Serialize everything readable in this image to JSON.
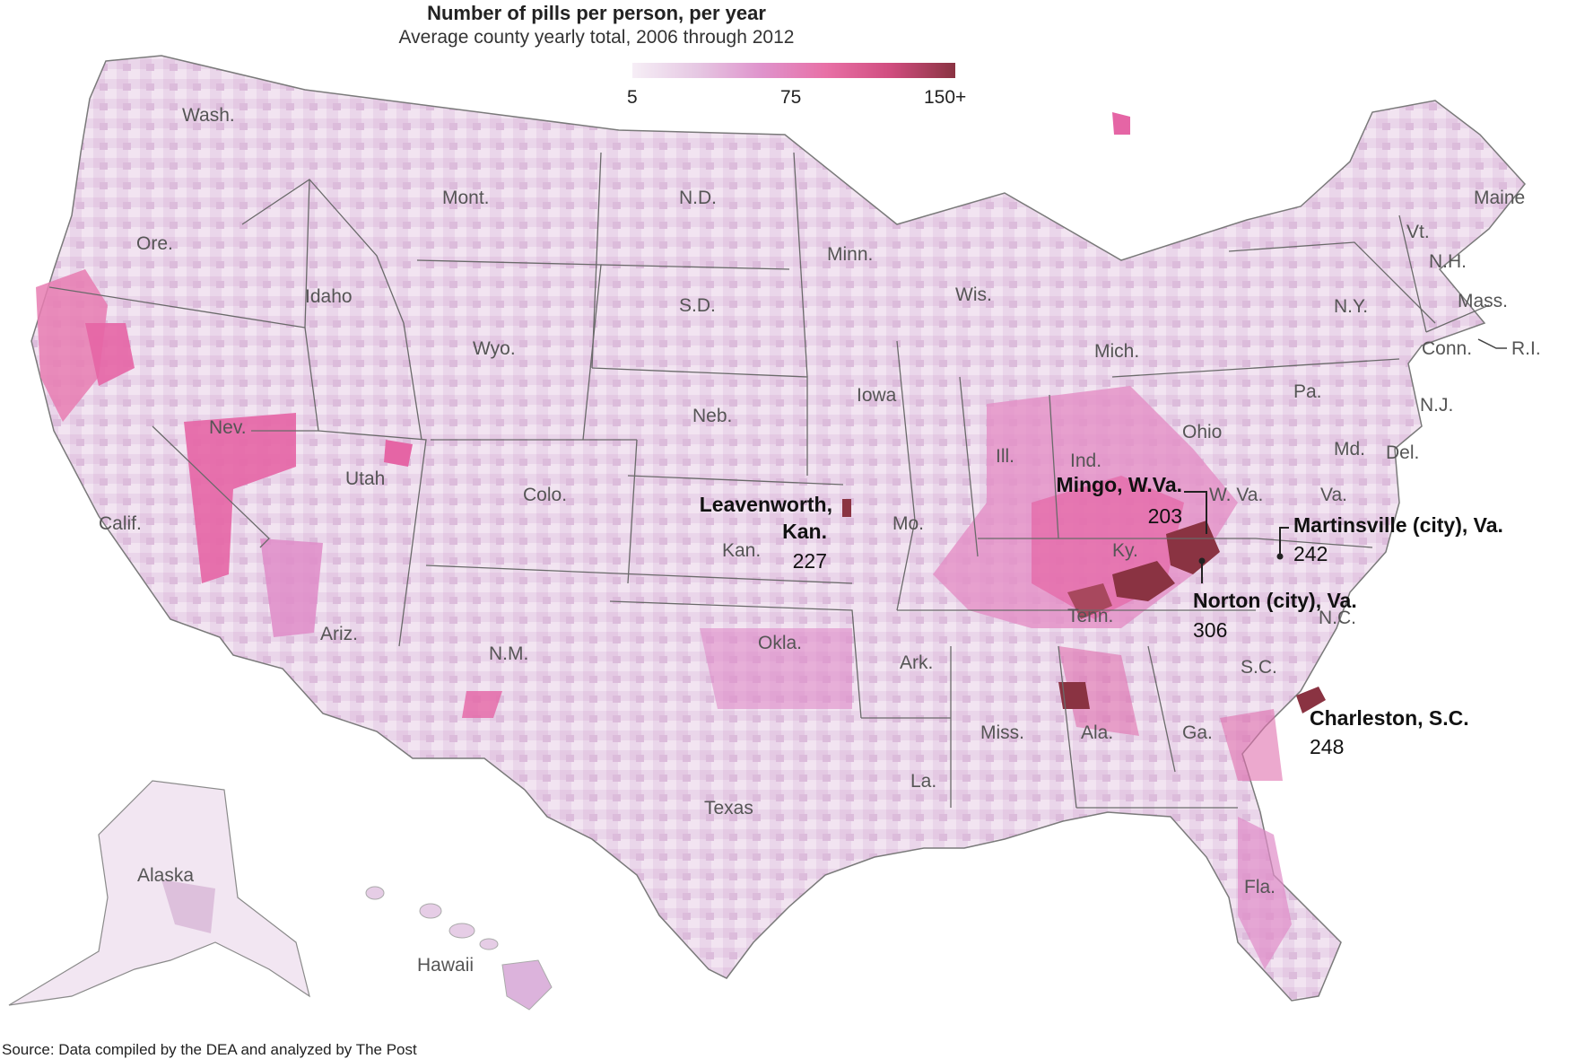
{
  "title": "Number of pills per person, per year",
  "subtitle": "Average county yearly total, 2006 through 2012",
  "legend": {
    "ticks": [
      "5",
      "75",
      "150+"
    ],
    "scale_colors": [
      "#f6eef6",
      "#e6c8e3",
      "#df93cc",
      "#e870a6",
      "#d04d7f",
      "#8a3342"
    ]
  },
  "colors": {
    "state_base": "#ecd9ec",
    "state_border": "#6a6a6a",
    "high": "#e870a6",
    "mid": "#d9a7d4",
    "light": "#f4eaf4",
    "extreme": "#8a3342"
  },
  "state_labels": [
    "Wash.",
    "Ore.",
    "Calif.",
    "Idaho",
    "Nev.",
    "Mont.",
    "Wyo.",
    "Utah",
    "Ariz.",
    "Colo.",
    "N.M.",
    "N.D.",
    "S.D.",
    "Neb.",
    "Kan.",
    "Okla.",
    "Texas",
    "Minn.",
    "Iowa",
    "Mo.",
    "Ark.",
    "La.",
    "Wis.",
    "Ill.",
    "Mich.",
    "Ind.",
    "Ohio",
    "Ky.",
    "Tenn.",
    "Miss.",
    "Ala.",
    "Ga.",
    "Fla.",
    "S.C.",
    "N.C.",
    "Va.",
    "W. Va.",
    "Pa.",
    "N.Y.",
    "Md.",
    "Del.",
    "N.J.",
    "Conn.",
    "R.I.",
    "Mass.",
    "Vt.",
    "N.H.",
    "Maine",
    "Alaska",
    "Hawaii"
  ],
  "callouts": [
    {
      "name_line1": "Leavenworth,",
      "name_line2": "Kan.",
      "value": "227"
    },
    {
      "name": "Mingo, W.Va.",
      "value": "203"
    },
    {
      "name": "Martinsville (city), Va.",
      "value": "242"
    },
    {
      "name": "Norton (city), Va.",
      "value": "306"
    },
    {
      "name": "Charleston, S.C.",
      "value": "248"
    }
  ],
  "source": "Source: Data compiled by the DEA and analyzed by The Post"
}
